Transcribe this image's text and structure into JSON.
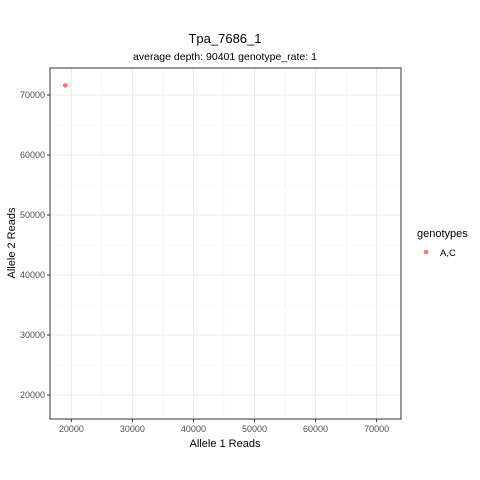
{
  "chart_data": {
    "type": "scatter",
    "title": "Tpa_7686_1",
    "subtitle": "average depth:  90401  genotype_rate:  1",
    "xlabel": "Allele 1 Reads",
    "ylabel": "Allele 2 Reads",
    "xlim": [
      16500,
      74000
    ],
    "ylim": [
      16000,
      74500
    ],
    "x_ticks": [
      20000,
      30000,
      40000,
      50000,
      60000,
      70000
    ],
    "y_ticks": [
      20000,
      30000,
      40000,
      50000,
      60000,
      70000
    ],
    "x_tick_labels": [
      "20000",
      "30000",
      "40000",
      "50000",
      "60000",
      "70000"
    ],
    "y_tick_labels": [
      "20000",
      "30000",
      "40000",
      "50000",
      "60000",
      "70000"
    ],
    "grid": true,
    "legend": {
      "title": "genotypes",
      "position": "right",
      "entries": [
        {
          "label": "A,C",
          "color": "#F8766D"
        }
      ]
    },
    "series": [
      {
        "name": "A,C",
        "color": "#F8766D",
        "points": [
          {
            "x": 19000,
            "y": 71600
          }
        ]
      }
    ]
  }
}
